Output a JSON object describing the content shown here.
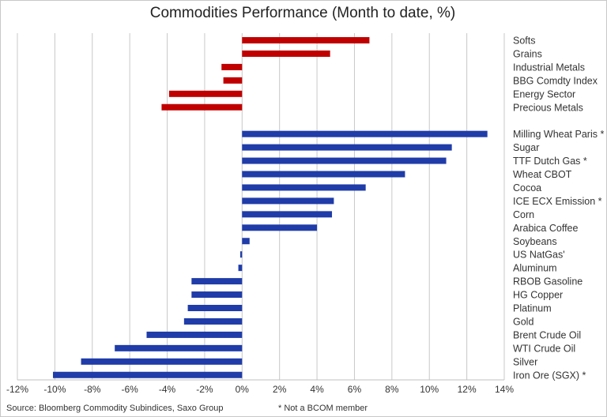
{
  "chart_data": {
    "type": "bar",
    "orientation": "horizontal",
    "title": "Commodities Performance (Month to date, %)",
    "xlabel": "",
    "ylabel": "",
    "xlim": [
      -12,
      14
    ],
    "xticks": [
      -12,
      -10,
      -8,
      -6,
      -4,
      -2,
      0,
      2,
      4,
      6,
      8,
      10,
      12,
      14
    ],
    "xtick_labels": [
      "-12%",
      "-10%",
      "-8%",
      "-6%",
      "-4%",
      "-2%",
      "0%",
      "2%",
      "4%",
      "6%",
      "8%",
      "10%",
      "12%",
      "14%"
    ],
    "grid": "vertical",
    "groups": [
      {
        "color": "#c00000",
        "categories": [
          "Softs",
          "Grains",
          "Industrial Metals",
          "BBG Comdty Index",
          "Energy Sector",
          "Precious Metals"
        ],
        "values": [
          6.8,
          4.7,
          -1.1,
          -1.0,
          -3.9,
          -4.3
        ]
      },
      {
        "color": "#1f3ca8",
        "categories": [
          "Milling Wheat Paris *",
          "Sugar",
          "TTF Dutch Gas *",
          "Wheat CBOT",
          "Cocoa",
          "ICE ECX Emission *",
          "Corn",
          "Arabica Coffee",
          "Soybeans",
          "US NatGas'",
          "Aluminum",
          "RBOB Gasoline",
          "HG Copper",
          "Platinum",
          "Gold",
          "Brent Crude Oil",
          "WTI Crude Oil",
          "Silver",
          "Iron Ore (SGX) *"
        ],
        "values": [
          13.1,
          11.2,
          10.9,
          8.7,
          6.6,
          4.9,
          4.8,
          4.0,
          0.4,
          -0.1,
          -0.2,
          -2.7,
          -2.7,
          -2.9,
          -3.1,
          -5.1,
          -6.8,
          -8.6,
          -10.1
        ]
      }
    ]
  },
  "footer": {
    "source": "Source: Bloomberg Commodity Subindices, Saxo Group",
    "note": "* Not a BCOM member"
  }
}
